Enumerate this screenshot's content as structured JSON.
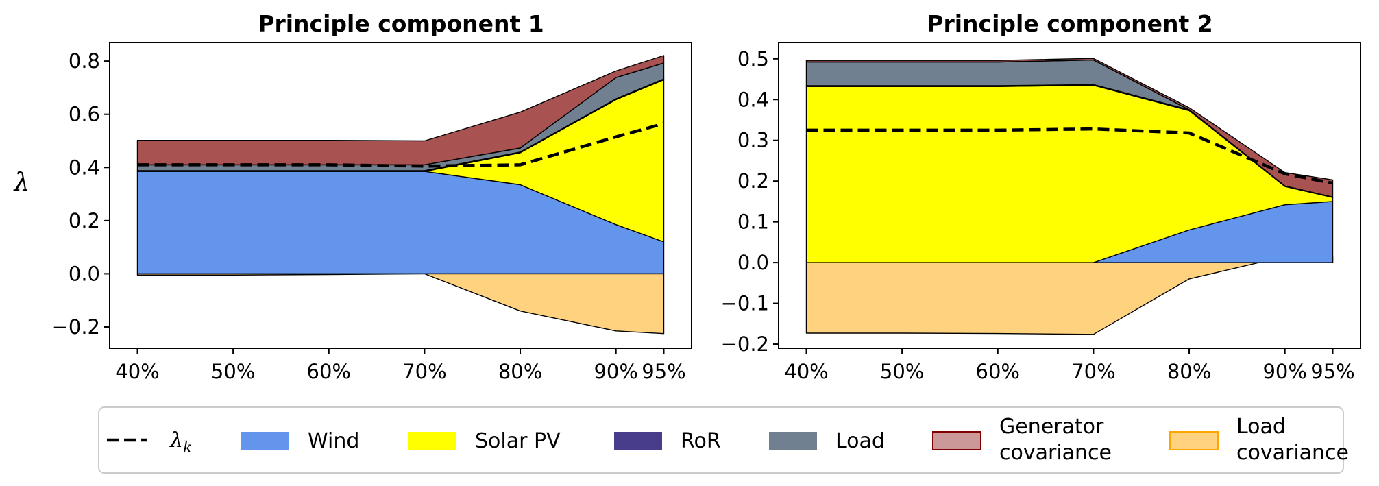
{
  "figure": {
    "ylabel": "λ",
    "colors": {
      "wind": "#6495ED",
      "solar": "#FFFF00",
      "ror": "#483D8B",
      "load": "#708090",
      "gen_cov": "#800000",
      "load_cov": "#FFA500"
    }
  },
  "chart_data": [
    {
      "type": "area",
      "title": "Principle component 1",
      "xlabel": "",
      "ylabel": "λ",
      "categories": [
        "40%",
        "50%",
        "60%",
        "70%",
        "80%",
        "90%",
        "95%"
      ],
      "x": [
        40,
        50,
        60,
        70,
        80,
        90,
        95
      ],
      "ylim": [
        -0.28,
        0.87
      ],
      "yticks": [
        -0.2,
        0.0,
        0.2,
        0.4,
        0.6,
        0.8
      ],
      "ytick_labels": [
        "−0.2",
        "0.0",
        "0.2",
        "0.4",
        "0.6",
        "0.8"
      ],
      "series": [
        {
          "key": "wind",
          "name": "Wind",
          "values": [
            0.385,
            0.385,
            0.385,
            0.385,
            0.335,
            0.185,
            0.12
          ]
        },
        {
          "key": "solar",
          "name": "Solar PV",
          "values": [
            0.0,
            0.0,
            0.0,
            0.0,
            0.12,
            0.47,
            0.61
          ]
        },
        {
          "key": "ror",
          "name": "RoR",
          "values": [
            0.003,
            0.003,
            0.003,
            0.003,
            0.003,
            0.003,
            0.003
          ]
        },
        {
          "key": "load",
          "name": "Load",
          "values": [
            0.022,
            0.022,
            0.022,
            0.022,
            0.015,
            0.08,
            0.06
          ]
        },
        {
          "key": "gen_cov",
          "name": "Generator covariance",
          "values": [
            0.092,
            0.092,
            0.092,
            0.09,
            0.135,
            0.025,
            0.028
          ]
        },
        {
          "key": "load_cov",
          "name": "Load covariance",
          "values": [
            -0.005,
            -0.005,
            -0.003,
            0.0,
            -0.14,
            -0.215,
            -0.225
          ]
        },
        {
          "key": "lambda",
          "name": "λ_k",
          "values": [
            0.41,
            0.41,
            0.41,
            0.405,
            0.41,
            0.515,
            0.565
          ]
        }
      ]
    },
    {
      "type": "area",
      "title": "Principle component 2",
      "xlabel": "",
      "ylabel": "",
      "categories": [
        "40%",
        "50%",
        "60%",
        "70%",
        "80%",
        "90%",
        "95%"
      ],
      "x": [
        40,
        50,
        60,
        70,
        80,
        90,
        95
      ],
      "ylim": [
        -0.21,
        0.54
      ],
      "yticks": [
        -0.2,
        -0.1,
        0.0,
        0.1,
        0.2,
        0.3,
        0.4,
        0.5
      ],
      "ytick_labels": [
        "−0.2",
        "−0.1",
        "0.0",
        "0.1",
        "0.2",
        "0.3",
        "0.4",
        "0.5"
      ],
      "series": [
        {
          "key": "load_cov",
          "name": "Load covariance",
          "values": [
            -0.173,
            -0.173,
            -0.174,
            -0.176,
            -0.04,
            0.015,
            0.017
          ]
        },
        {
          "key": "wind",
          "name": "Wind",
          "values": [
            0.0,
            0.0,
            0.0,
            0.0,
            0.08,
            0.142,
            0.15
          ]
        },
        {
          "key": "solar",
          "name": "Solar PV",
          "values": [
            0.432,
            0.432,
            0.432,
            0.435,
            0.293,
            0.045,
            0.01
          ]
        },
        {
          "key": "ror",
          "name": "RoR",
          "values": [
            0.002,
            0.002,
            0.002,
            0.002,
            0.002,
            0.001,
            0.001
          ]
        },
        {
          "key": "load",
          "name": "Load",
          "values": [
            0.058,
            0.058,
            0.058,
            0.06,
            0.0,
            0.0,
            0.0
          ]
        },
        {
          "key": "gen_cov",
          "name": "Generator covariance",
          "values": [
            0.004,
            0.004,
            0.004,
            0.004,
            0.005,
            0.033,
            0.042
          ]
        },
        {
          "key": "lambda",
          "name": "λ_k",
          "values": [
            0.325,
            0.325,
            0.325,
            0.328,
            0.318,
            0.218,
            0.195
          ]
        }
      ]
    }
  ],
  "legend": {
    "placement": "bottom",
    "items": [
      {
        "key": "lambda",
        "style": "dashed",
        "label_main": "λ",
        "label_sub": "k"
      },
      {
        "key": "wind",
        "style": "patch",
        "label": "Wind"
      },
      {
        "key": "solar",
        "style": "patch",
        "label": "Solar PV"
      },
      {
        "key": "ror",
        "style": "patch",
        "label": "RoR"
      },
      {
        "key": "load",
        "style": "patch",
        "label": "Load"
      },
      {
        "key": "gen_cov",
        "style": "patch",
        "label": "Generator",
        "label2": "covariance"
      },
      {
        "key": "load_cov",
        "style": "patch",
        "label": "Load",
        "label2": "covariance"
      }
    ]
  }
}
